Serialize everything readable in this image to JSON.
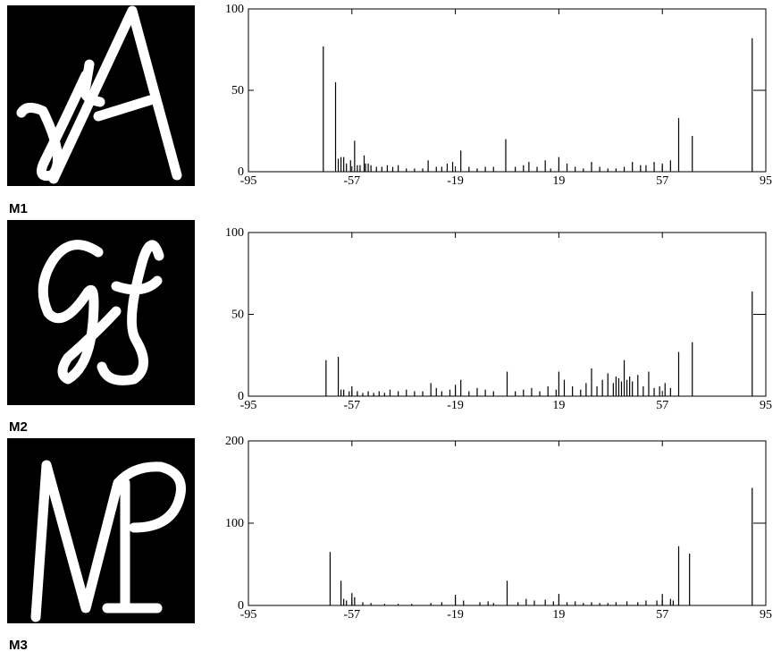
{
  "panel_labels": [
    "M1",
    "M2",
    "M3"
  ],
  "chart_data": [
    {
      "type": "bar",
      "color": "#000000",
      "xlim": [
        -95,
        95
      ],
      "xticks": [
        -95,
        -57,
        -19,
        19,
        57,
        95
      ],
      "ylim": [
        0,
        100
      ],
      "yticks": [
        0,
        50,
        100
      ],
      "x": [
        -67.5,
        -63,
        -62,
        -61,
        -60,
        -59,
        -57.5,
        -56,
        -55,
        -54,
        -52.5,
        -52,
        -51,
        -50,
        -48,
        -46,
        -44,
        -42,
        -40,
        -37,
        -34,
        -31,
        -29,
        -26,
        -24,
        -22,
        -20,
        -17,
        -14,
        -11,
        -8,
        -5,
        -0.5,
        3,
        6,
        8,
        11,
        14,
        16,
        19,
        22,
        25,
        28,
        31,
        34,
        37,
        40,
        43,
        46,
        49,
        51,
        54,
        57,
        60,
        63,
        68,
        90
      ],
      "values": [
        77,
        55,
        8,
        9,
        9,
        5,
        7,
        19,
        4,
        4,
        10,
        5,
        5,
        4,
        3,
        3,
        4,
        3,
        4,
        2,
        2,
        2,
        7,
        3,
        3,
        5,
        6,
        13,
        3,
        2,
        3,
        3,
        20,
        3,
        4,
        6,
        3,
        7,
        2,
        9,
        5,
        3,
        2,
        6,
        3,
        2,
        2,
        3,
        6,
        4,
        4,
        6,
        5,
        7,
        33,
        22,
        82
      ]
    },
    {
      "type": "bar",
      "color": "#000000",
      "xlim": [
        -95,
        95
      ],
      "xticks": [
        -95,
        -57,
        -19,
        19,
        57,
        95
      ],
      "ylim": [
        0,
        100
      ],
      "yticks": [
        0,
        50,
        100
      ],
      "x": [
        -66.5,
        -62,
        -61,
        -60,
        -58,
        -57,
        -55,
        -53,
        -51,
        -49,
        -47,
        -45,
        -43,
        -40,
        -37,
        -34,
        -31,
        -28,
        -26,
        -24,
        -21,
        -19,
        -17,
        -14,
        -11,
        -8,
        -5,
        0,
        3,
        6,
        9,
        12,
        15,
        18,
        19,
        21,
        24,
        27,
        29,
        31,
        33,
        35,
        37,
        39,
        40,
        41,
        42,
        43,
        44,
        45,
        46,
        48,
        50,
        52,
        54,
        56,
        58,
        60,
        63,
        68,
        90
      ],
      "values": [
        22,
        24,
        4,
        4,
        3,
        6,
        3,
        2,
        3,
        2,
        3,
        2,
        4,
        3,
        4,
        3,
        3,
        8,
        5,
        3,
        4,
        7,
        10,
        3,
        5,
        4,
        3,
        15,
        3,
        4,
        5,
        3,
        6,
        4,
        15,
        10,
        6,
        4,
        8,
        17,
        6,
        10,
        14,
        8,
        12,
        11,
        9,
        22,
        10,
        12,
        9,
        13,
        6,
        15,
        5,
        6,
        8,
        5,
        27,
        33,
        64
      ]
    },
    {
      "type": "bar",
      "color": "#000000",
      "xlim": [
        -95,
        95
      ],
      "xticks": [
        -95,
        -57,
        -19,
        19,
        57,
        95
      ],
      "ylim": [
        0,
        200
      ],
      "yticks": [
        0,
        100,
        200
      ],
      "x": [
        -65,
        -61,
        -60,
        -59,
        -57,
        -56,
        -53,
        -50,
        -45,
        -40,
        -35,
        -28,
        -24,
        -19,
        -16,
        -10,
        -7,
        -5,
        0,
        4,
        7,
        10,
        14,
        17,
        19,
        22,
        25,
        28,
        31,
        34,
        37,
        40,
        44,
        48,
        51,
        55,
        57,
        60,
        61,
        63,
        67,
        90
      ],
      "values": [
        65,
        30,
        8,
        6,
        15,
        10,
        4,
        3,
        2,
        2,
        2,
        3,
        4,
        13,
        6,
        4,
        5,
        3,
        30,
        4,
        8,
        6,
        7,
        5,
        14,
        4,
        5,
        3,
        4,
        3,
        3,
        4,
        5,
        4,
        6,
        6,
        14,
        8,
        6,
        72,
        63,
        143
      ]
    }
  ]
}
